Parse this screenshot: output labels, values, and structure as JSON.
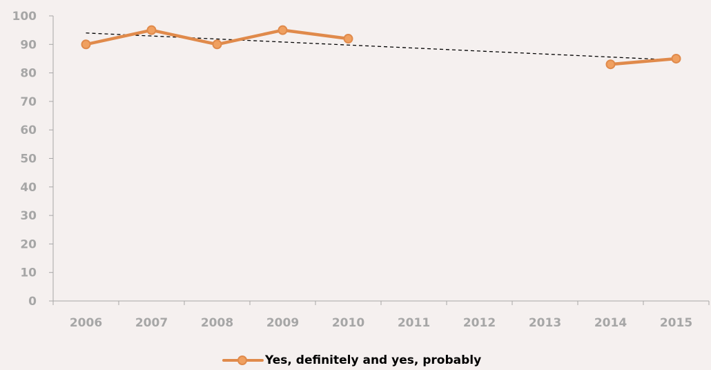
{
  "chart_data": {
    "type": "line",
    "categories": [
      "2006",
      "2007",
      "2008",
      "2009",
      "2010",
      "2011",
      "2012",
      "2013",
      "2014",
      "2015"
    ],
    "series": [
      {
        "name": "Yes, definitely and yes, probably",
        "values": [
          90,
          95,
          90,
          95,
          92,
          null,
          null,
          null,
          83,
          85
        ],
        "color": "#e08a4b",
        "marker_color": "#f0a060"
      }
    ],
    "trendline": {
      "style": "dashed",
      "color": "#000000",
      "start": 94,
      "end": 84.5
    },
    "ylim": [
      0,
      100
    ],
    "yticks": [
      0,
      10,
      20,
      30,
      40,
      50,
      60,
      70,
      80,
      90,
      100
    ],
    "title": "",
    "xlabel": "",
    "ylabel": "",
    "grid": false,
    "legend_position": "bottom"
  },
  "legend": {
    "label": "Yes, definitely and yes, probably"
  }
}
